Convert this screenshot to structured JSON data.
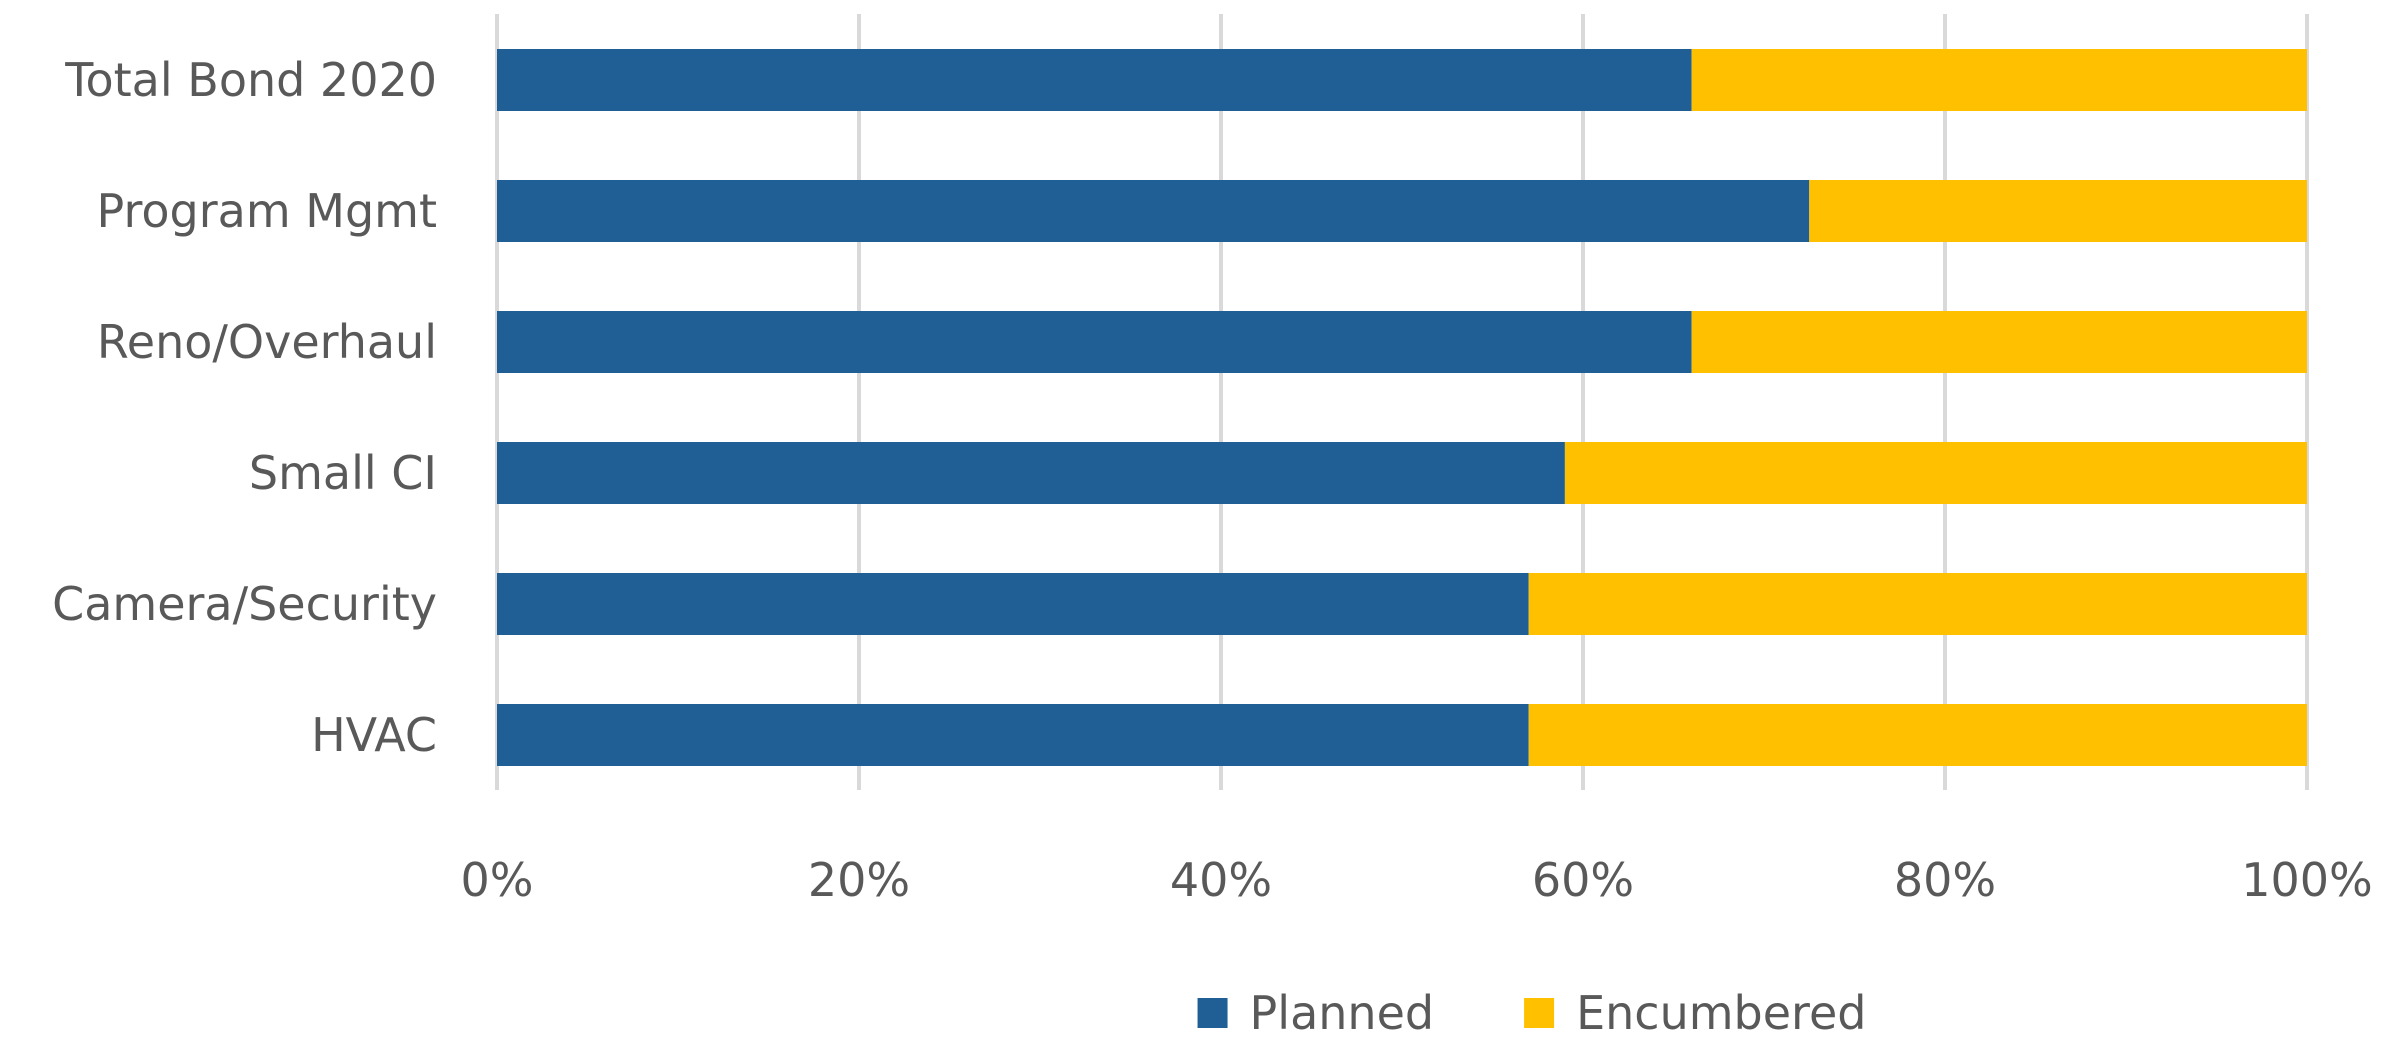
{
  "chart_data": {
    "type": "bar",
    "orientation": "horizontal",
    "stacked": "percent",
    "categories": [
      "Total Bond 2020",
      "Program Mgmt",
      "Reno/Overhaul",
      "Small CI",
      "Camera/Security",
      "HVAC"
    ],
    "series": [
      {
        "name": "Planned",
        "color": "#1f5f96",
        "values": [
          66,
          72.5,
          66,
          59,
          57,
          57
        ]
      },
      {
        "name": "Encumbered",
        "color": "#ffc000",
        "values": [
          34,
          27.5,
          34,
          41,
          43,
          43
        ]
      }
    ],
    "xlim": [
      0,
      100
    ],
    "xticks": [
      0,
      20,
      40,
      60,
      80,
      100
    ],
    "tick_labels": [
      "0%",
      "20%",
      "40%",
      "60%",
      "80%",
      "100%"
    ],
    "grid": "vertical",
    "legend": "bottom-center"
  }
}
